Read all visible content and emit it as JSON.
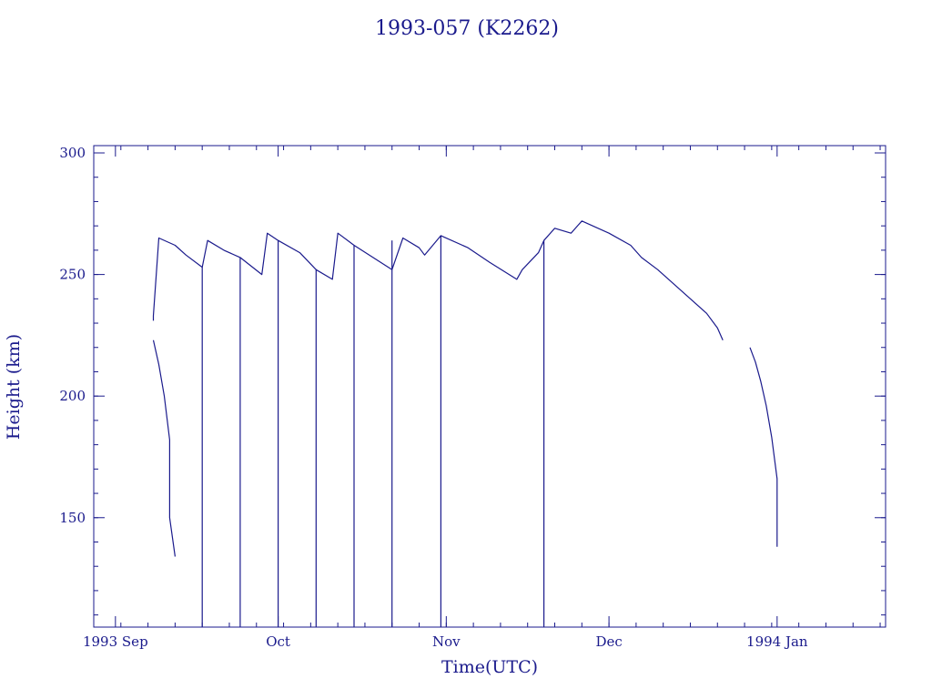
{
  "chart_data": {
    "type": "line",
    "title": "1993-057 (K2262)",
    "xlabel": "Time(UTC)",
    "ylabel": "Height (km)",
    "x_unit": "date",
    "xlim": [
      "1993-08-28",
      "1994-01-21"
    ],
    "ylim": [
      105,
      303
    ],
    "x_ticks": [
      {
        "date": "1993-09-01",
        "label": "1993 Sep"
      },
      {
        "date": "1993-10-01",
        "label": "Oct"
      },
      {
        "date": "1993-11-01",
        "label": "Nov"
      },
      {
        "date": "1993-12-01",
        "label": "Dec"
      },
      {
        "date": "1994-01-01",
        "label": "1994 Jan"
      }
    ],
    "y_ticks": [
      150,
      200,
      250,
      300
    ],
    "grid": false,
    "color": "#1a1a8c",
    "segments": [
      [
        [
          "1993-09-08",
          231
        ],
        [
          "1993-09-08",
          233
        ],
        [
          "1993-09-09",
          265
        ],
        [
          "1993-09-12",
          262
        ],
        [
          "1993-09-14",
          258
        ],
        [
          "1993-09-17",
          253
        ],
        [
          "1993-09-17",
          105
        ]
      ],
      [
        [
          "1993-09-17",
          253
        ],
        [
          "1993-09-18",
          264
        ],
        [
          "1993-09-21",
          260
        ],
        [
          "1993-09-24",
          257
        ],
        [
          "1993-09-24",
          105
        ]
      ],
      [
        [
          "1993-09-24",
          257
        ],
        [
          "1993-09-28",
          250
        ],
        [
          "1993-09-29",
          267
        ],
        [
          "1993-10-01",
          264
        ],
        [
          "1993-10-01",
          105
        ]
      ],
      [
        [
          "1993-10-01",
          264
        ],
        [
          "1993-10-05",
          259
        ],
        [
          "1993-10-08",
          252
        ],
        [
          "1993-10-08",
          105
        ]
      ],
      [
        [
          "1993-10-08",
          252
        ],
        [
          "1993-10-11",
          248
        ],
        [
          "1993-10-12",
          267
        ],
        [
          "1993-10-15",
          262
        ],
        [
          "1993-10-15",
          105
        ]
      ],
      [
        [
          "1993-10-15",
          262
        ],
        [
          "1993-10-22",
          252
        ],
        [
          "1993-10-22",
          105
        ]
      ],
      [
        [
          "1993-10-22",
          252
        ],
        [
          "1993-10-22",
          264
        ]
      ],
      [
        [
          "1993-10-22",
          252
        ],
        [
          "1993-10-24",
          265
        ],
        [
          "1993-10-27",
          261
        ],
        [
          "1993-10-28",
          258
        ],
        [
          "1993-10-31",
          266
        ],
        [
          "1993-10-31",
          105
        ]
      ],
      [
        [
          "1993-10-31",
          266
        ],
        [
          "1993-11-05",
          261
        ],
        [
          "1993-11-09",
          255
        ],
        [
          "1993-11-14",
          248
        ],
        [
          "1993-11-15",
          252
        ],
        [
          "1993-11-18",
          259
        ],
        [
          "1993-11-19",
          264
        ],
        [
          "1993-11-19",
          105
        ]
      ],
      [
        [
          "1993-11-19",
          264
        ],
        [
          "1993-11-21",
          269
        ],
        [
          "1993-11-24",
          267
        ],
        [
          "1993-11-26",
          272
        ],
        [
          "1993-12-01",
          267
        ],
        [
          "1993-12-05",
          262
        ],
        [
          "1993-12-07",
          257
        ],
        [
          "1993-12-10",
          252
        ],
        [
          "1993-12-13",
          246
        ],
        [
          "1993-12-16",
          240
        ],
        [
          "1993-12-19",
          234
        ],
        [
          "1993-12-21",
          228
        ],
        [
          "1993-12-22",
          223
        ]
      ],
      [
        [
          "1993-12-27",
          220
        ],
        [
          "1993-12-28",
          214
        ],
        [
          "1993-12-29",
          206
        ],
        [
          "1993-12-30",
          196
        ],
        [
          "1993-12-31",
          183
        ],
        [
          "1994-01-01",
          166
        ],
        [
          "1994-01-01",
          150
        ],
        [
          "1994-01-01",
          138
        ]
      ],
      [
        [
          "1993-09-08",
          223
        ],
        [
          "1993-09-09",
          213
        ],
        [
          "1993-09-10",
          200
        ],
        [
          "1993-09-11",
          182
        ],
        [
          "1993-09-11",
          166
        ],
        [
          "1993-09-11",
          150
        ],
        [
          "1993-09-12",
          134
        ]
      ]
    ]
  }
}
